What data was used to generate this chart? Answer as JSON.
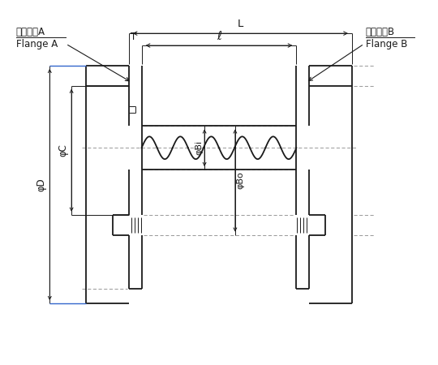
{
  "bg_color": "#ffffff",
  "lc": "#1a1a1a",
  "dc": "#1a1a1a",
  "blue_color": "#3366cc",
  "lw_main": 1.3,
  "lw_thin": 0.7,
  "lw_dim": 0.7,
  "fs_label": 8.5,
  "fs_dim": 8.5,
  "labels": {
    "flange_a_jp": "フランジA",
    "flange_a_en": "Flange A",
    "flange_b_jp": "フランジB",
    "flange_b_en": "Flange B",
    "L": "L",
    "ell": "ℓ",
    "T": "T",
    "phi_D": "φD",
    "phi_C": "φC",
    "phi_Bi": "φBi",
    "phi_Bo": "φBo"
  }
}
